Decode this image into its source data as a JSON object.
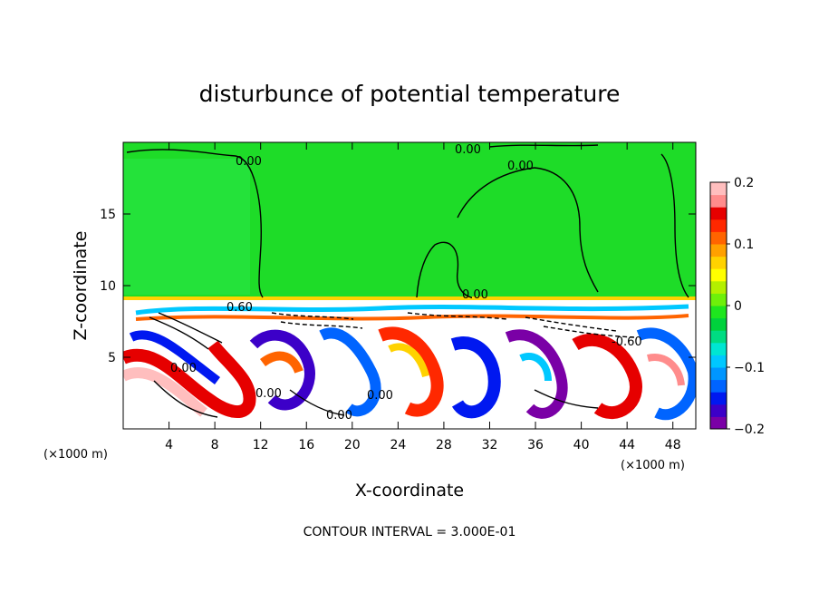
{
  "chart_data": {
    "type": "heatmap",
    "title": "disturbunce of potential temperature",
    "xlabel": "X-coordinate",
    "ylabel": "Z-coordinate",
    "x_unit": "(×1000 m)",
    "y_unit": "(×1000 m)",
    "xlim": [
      0,
      50
    ],
    "ylim": [
      0,
      20
    ],
    "x_ticks": [
      4,
      8,
      12,
      16,
      20,
      24,
      28,
      32,
      36,
      40,
      44,
      48
    ],
    "y_ticks": [
      5,
      10,
      15
    ],
    "colorbar": {
      "range": [
        -0.2,
        0.2
      ],
      "tick_values": [
        0.2,
        0.1,
        0,
        -0.1,
        -0.2
      ],
      "tick_labels": [
        "0.2",
        "0.1",
        "0",
        "−0.1",
        "−0.2"
      ],
      "colors": [
        "#7a00a6",
        "#3c00c8",
        "#0018f0",
        "#0064ff",
        "#0096ff",
        "#00c8ff",
        "#00e6d2",
        "#00dc82",
        "#00d23c",
        "#1ee61e",
        "#6ef00a",
        "#b4f000",
        "#ffff00",
        "#ffd200",
        "#ffa000",
        "#ff6400",
        "#ff2800",
        "#e60000",
        "#ff8c8c",
        "#ffbebe"
      ]
    },
    "contour_labels": [
      "0.00",
      "0.00",
      "0.00",
      "0.00",
      "0.60",
      "0.00",
      "0.00",
      "0.00",
      "-0.60",
      "0.00"
    ],
    "contour_interval": "CONTOUR INTERVAL = 3.000E-01"
  }
}
